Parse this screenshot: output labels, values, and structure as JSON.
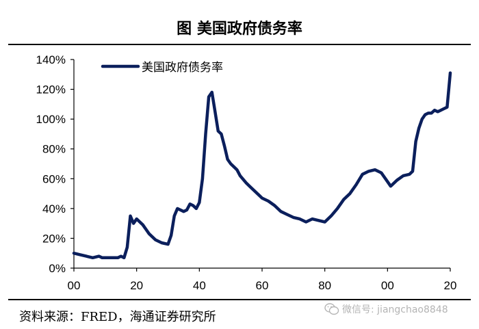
{
  "title": "图 美国政府债务率",
  "source": "资料来源：FRED，海通证券研究所",
  "watermark": "微信号: jiangchao8848",
  "chart_data": {
    "type": "line",
    "title": "图 美国政府债务率",
    "legend": "美国政府债务率",
    "legend_position": "top-left",
    "grid": false,
    "line_color": "#0b1f5c",
    "x_ticks": [
      "00",
      "20",
      "40",
      "60",
      "80",
      "00",
      "20"
    ],
    "y_ticks": [
      "0%",
      "20%",
      "40%",
      "60%",
      "80%",
      "100%",
      "120%",
      "140%"
    ],
    "ylim": [
      0,
      140
    ],
    "xlim": [
      1900,
      2020
    ],
    "series": [
      {
        "name": "美国政府债务率",
        "x": [
          1900,
          1902,
          1904,
          1906,
          1908,
          1909,
          1910,
          1912,
          1914,
          1915,
          1916,
          1917,
          1918,
          1919,
          1920,
          1921,
          1922,
          1923,
          1924,
          1925,
          1926,
          1928,
          1930,
          1931,
          1932,
          1933,
          1934,
          1935,
          1936,
          1937,
          1938,
          1939,
          1940,
          1941,
          1942,
          1943,
          1944,
          1945,
          1946,
          1947,
          1948,
          1949,
          1950,
          1951,
          1952,
          1953,
          1955,
          1956,
          1958,
          1960,
          1962,
          1964,
          1966,
          1968,
          1970,
          1972,
          1974,
          1976,
          1978,
          1980,
          1982,
          1984,
          1986,
          1988,
          1990,
          1992,
          1994,
          1996,
          1998,
          2000,
          2001,
          2003,
          2005,
          2007,
          2008,
          2009,
          2010,
          2011,
          2012,
          2013,
          2014,
          2015,
          2016,
          2017,
          2018,
          2019,
          2020
        ],
        "values": [
          10,
          9,
          8,
          7,
          8,
          7,
          7,
          7,
          7,
          8,
          7,
          14,
          35,
          30,
          33,
          31,
          29,
          26,
          23,
          21,
          19,
          17,
          16,
          22,
          35,
          40,
          39,
          38,
          39,
          43,
          42,
          40,
          44,
          60,
          90,
          115,
          118,
          105,
          92,
          90,
          82,
          73,
          70,
          68,
          66,
          62,
          57,
          55,
          51,
          47,
          45,
          42,
          38,
          36,
          34,
          33,
          31,
          33,
          32,
          31,
          35,
          40,
          46,
          50,
          56,
          63,
          65,
          66,
          64,
          58,
          55,
          59,
          62,
          63,
          65,
          85,
          94,
          100,
          103,
          104,
          104,
          106,
          105,
          106,
          107,
          108,
          131
        ]
      }
    ]
  }
}
